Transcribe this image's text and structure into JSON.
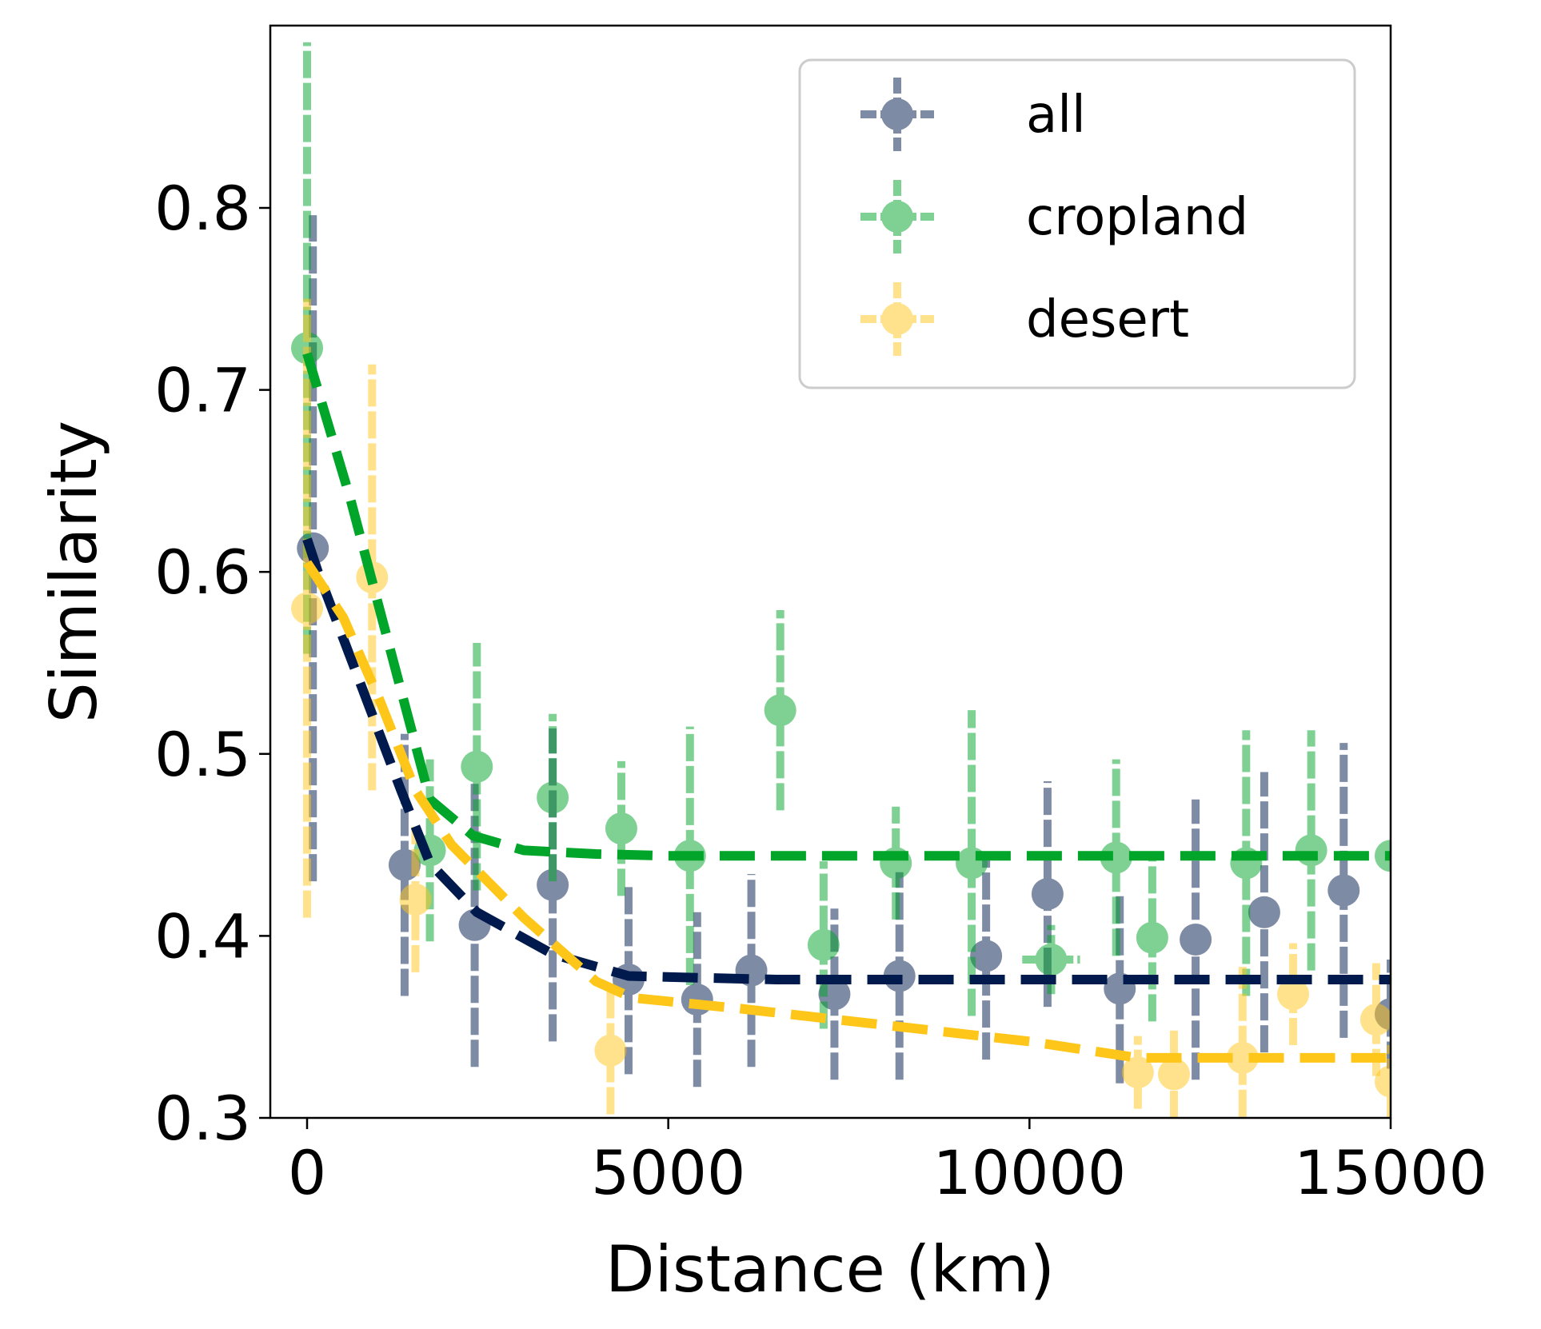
{
  "chart_data": {
    "type": "scatter",
    "title": "",
    "xlabel": "Distance (km)",
    "ylabel": "Similarity",
    "xlim": [
      -500,
      15000
    ],
    "ylim": [
      0.3,
      0.9
    ],
    "xticks": [
      0,
      5000,
      10000,
      15000
    ],
    "yticks": [
      0.3,
      0.4,
      0.5,
      0.6,
      0.7,
      0.8
    ],
    "xtick_labels": [
      "0",
      "5000",
      "10000",
      "15000"
    ],
    "ytick_labels": [
      "0.3",
      "0.4",
      "0.5",
      "0.6",
      "0.7",
      "0.8"
    ],
    "grid": false,
    "legend_position": "top-right",
    "series": [
      {
        "name": "all",
        "color": "#001a4d",
        "points": [
          {
            "x": 80,
            "y": 0.613,
            "yerr": 0.183,
            "xerr": 130
          },
          {
            "x": 1350,
            "y": 0.439,
            "yerr": 0.072,
            "xerr": 130
          },
          {
            "x": 2320,
            "y": 0.406,
            "yerr": 0.078,
            "xerr": 180
          },
          {
            "x": 3400,
            "y": 0.428,
            "yerr": 0.086,
            "xerr": 200
          },
          {
            "x": 4450,
            "y": 0.376,
            "yerr": 0.052,
            "xerr": 180
          },
          {
            "x": 5400,
            "y": 0.365,
            "yerr": 0.048,
            "xerr": 150
          },
          {
            "x": 6150,
            "y": 0.381,
            "yerr": 0.053,
            "xerr": 150
          },
          {
            "x": 7300,
            "y": 0.368,
            "yerr": 0.047,
            "xerr": 150
          },
          {
            "x": 8200,
            "y": 0.378,
            "yerr": 0.057,
            "xerr": 150
          },
          {
            "x": 9400,
            "y": 0.389,
            "yerr": 0.057,
            "xerr": 200
          },
          {
            "x": 10250,
            "y": 0.423,
            "yerr": 0.062,
            "xerr": 150
          },
          {
            "x": 11250,
            "y": 0.371,
            "yerr": 0.052,
            "xerr": 150
          },
          {
            "x": 12300,
            "y": 0.398,
            "yerr": 0.077,
            "xerr": 200
          },
          {
            "x": 13250,
            "y": 0.413,
            "yerr": 0.077,
            "xerr": 150
          },
          {
            "x": 14350,
            "y": 0.425,
            "yerr": 0.081,
            "xerr": 150
          },
          {
            "x": 15000,
            "y": 0.357,
            "yerr": 0.03,
            "xerr": 120
          }
        ],
        "fit_x": [
          0,
          150,
          1300,
          1700,
          2350,
          3400,
          4450,
          5400,
          6500,
          8000,
          10000,
          12000,
          15000
        ],
        "fit_y": [
          0.618,
          0.6,
          0.48,
          0.44,
          0.413,
          0.39,
          0.378,
          0.377,
          0.376,
          0.376,
          0.376,
          0.376,
          0.376
        ]
      },
      {
        "name": "cropland",
        "color": "#00a529",
        "points": [
          {
            "x": 0,
            "y": 0.723,
            "yerr": 0.168,
            "xerr": 0
          },
          {
            "x": 1700,
            "y": 0.447,
            "yerr": 0.05,
            "xerr": 0
          },
          {
            "x": 2350,
            "y": 0.493,
            "yerr": 0.068,
            "xerr": 0
          },
          {
            "x": 3400,
            "y": 0.476,
            "yerr": 0.046,
            "xerr": 0
          },
          {
            "x": 4350,
            "y": 0.459,
            "yerr": 0.037,
            "xerr": 0
          },
          {
            "x": 5300,
            "y": 0.444,
            "yerr": 0.071,
            "xerr": 0
          },
          {
            "x": 6550,
            "y": 0.524,
            "yerr": 0.055,
            "xerr": 0
          },
          {
            "x": 7150,
            "y": 0.395,
            "yerr": 0.046,
            "xerr": 0
          },
          {
            "x": 8150,
            "y": 0.44,
            "yerr": 0.031,
            "xerr": 0
          },
          {
            "x": 9200,
            "y": 0.44,
            "yerr": 0.084,
            "xerr": 0
          },
          {
            "x": 10300,
            "y": 0.387,
            "yerr": 0.019,
            "xerr": 400
          },
          {
            "x": 11200,
            "y": 0.443,
            "yerr": 0.054,
            "xerr": 0
          },
          {
            "x": 11700,
            "y": 0.399,
            "yerr": 0.046,
            "xerr": 0
          },
          {
            "x": 13000,
            "y": 0.44,
            "yerr": 0.073,
            "xerr": 0
          },
          {
            "x": 13900,
            "y": 0.447,
            "yerr": 0.066,
            "xerr": 0
          },
          {
            "x": 15000,
            "y": 0.444,
            "yerr": 0.0,
            "xerr": 0
          }
        ],
        "fit_x": [
          0,
          600,
          1200,
          1700,
          2300,
          3000,
          4000,
          5000,
          6000,
          8000,
          10000,
          12000,
          15000
        ],
        "fit_y": [
          0.72,
          0.64,
          0.55,
          0.475,
          0.455,
          0.447,
          0.445,
          0.444,
          0.444,
          0.444,
          0.444,
          0.444,
          0.444
        ]
      },
      {
        "name": "desert",
        "color": "#ffc61a",
        "points": [
          {
            "x": 0,
            "y": 0.58,
            "yerr": 0.17,
            "xerr": 0
          },
          {
            "x": 900,
            "y": 0.597,
            "yerr": 0.117,
            "xerr": 0
          },
          {
            "x": 1500,
            "y": 0.42,
            "yerr": 0.04,
            "xerr": 0
          },
          {
            "x": 4200,
            "y": 0.337,
            "yerr": 0.035,
            "xerr": 0
          },
          {
            "x": 11500,
            "y": 0.325,
            "yerr": 0.02,
            "xerr": 0
          },
          {
            "x": 12000,
            "y": 0.324,
            "yerr": 0.024,
            "xerr": 0
          },
          {
            "x": 12950,
            "y": 0.333,
            "yerr": 0.05,
            "xerr": 0
          },
          {
            "x": 13650,
            "y": 0.368,
            "yerr": 0.028,
            "xerr": 0
          },
          {
            "x": 14800,
            "y": 0.354,
            "yerr": 0.031,
            "xerr": 0
          },
          {
            "x": 15000,
            "y": 0.32,
            "yerr": 0.02,
            "xerr": 0
          }
        ],
        "fit_x": [
          0,
          500,
          1000,
          1500,
          2000,
          3000,
          4000,
          4500,
          6000,
          8000,
          10000,
          11500,
          13000,
          15000
        ],
        "fit_y": [
          0.605,
          0.575,
          0.53,
          0.48,
          0.45,
          0.41,
          0.375,
          0.366,
          0.36,
          0.351,
          0.342,
          0.333,
          0.333,
          0.333
        ]
      }
    ]
  }
}
